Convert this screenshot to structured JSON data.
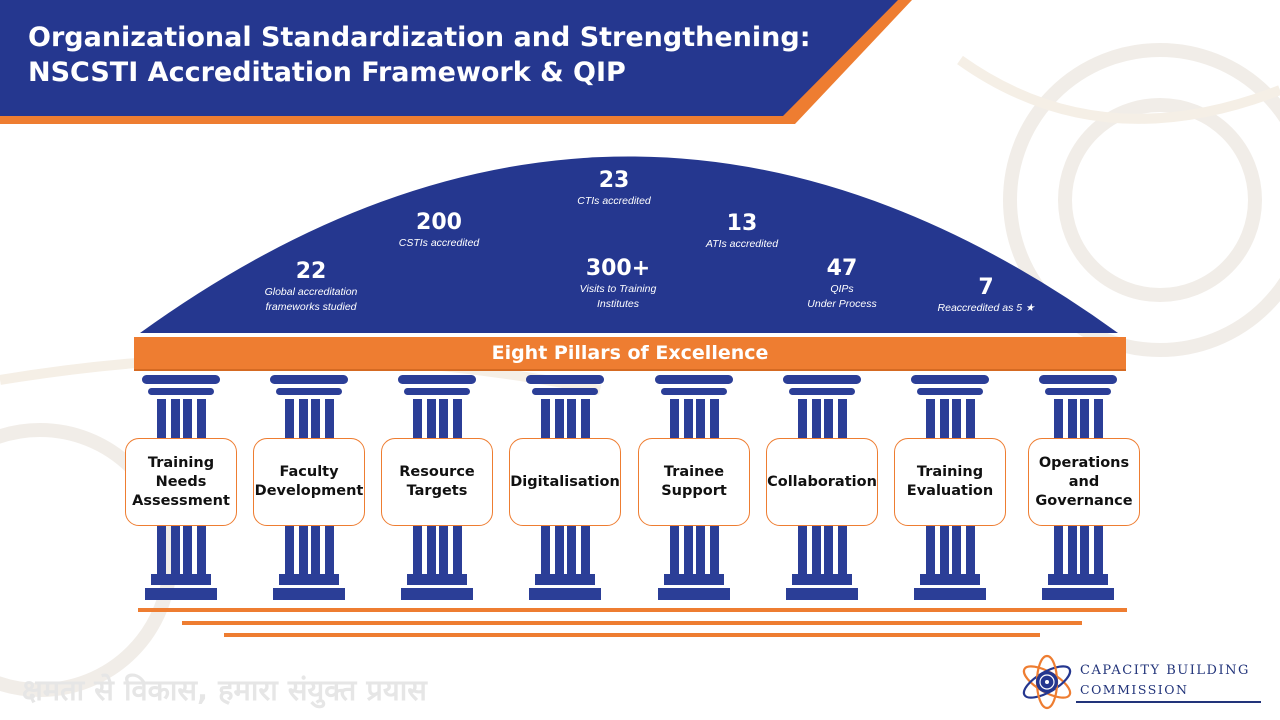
{
  "header": {
    "title_line1": "Organizational Standardization and Strengthening:",
    "title_line2": "NSCSTI Accreditation Framework & QIP"
  },
  "stats": [
    {
      "value": "22",
      "label_line1": "Global accreditation",
      "label_line2": "frameworks studied"
    },
    {
      "value": "200",
      "label_line1": "CSTIs accredited",
      "label_line2": ""
    },
    {
      "value": "23",
      "label_line1": "CTIs accredited",
      "label_line2": ""
    },
    {
      "value": "300+",
      "label_line1": "Visits to Training",
      "label_line2": "Institutes"
    },
    {
      "value": "13",
      "label_line1": "ATIs accredited",
      "label_line2": ""
    },
    {
      "value": "47",
      "label_line1": "QIPs",
      "label_line2": "Under Process"
    },
    {
      "value": "7",
      "label_line1": "Reaccredited as 5 ★",
      "label_line2": ""
    }
  ],
  "banner": "Eight Pillars of Excellence",
  "pillars": [
    {
      "label": "Training Needs Assessment"
    },
    {
      "label": "Faculty Development"
    },
    {
      "label": "Resource Targets"
    },
    {
      "label": "Digitalisation"
    },
    {
      "label": "Trainee Support"
    },
    {
      "label": "Collaboration"
    },
    {
      "label": "Training Evaluation"
    },
    {
      "label": "Operations and Governance"
    }
  ],
  "footer": {
    "tagline": "क्षमता से विकास, हमारा संयुक्त प्रयास",
    "logo_line1": "CAPACITY BUILDING",
    "logo_line2": "COMMISSION"
  },
  "colors": {
    "navy": "#25378F",
    "orange": "#EE7D31",
    "pillar": "#2B3E97"
  }
}
